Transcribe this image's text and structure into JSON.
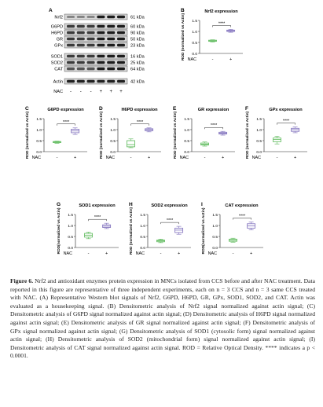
{
  "figure": {
    "panel_letters": [
      "A",
      "B",
      "C",
      "D",
      "E",
      "F",
      "G",
      "H",
      "I"
    ],
    "blot": {
      "proteins": [
        {
          "label": "Nrf2",
          "kda": "61 kDa"
        },
        {
          "label": "G6PD",
          "kda": "60 kDa"
        },
        {
          "label": "H6PD",
          "kda": "90 kDa"
        },
        {
          "label": "GR",
          "kda": "50 kDa"
        },
        {
          "label": "GPx",
          "kda": "23 kDa"
        },
        {
          "label": "SOD1",
          "kda": "16 kDa"
        },
        {
          "label": "SOD2",
          "kda": "25 kDa"
        },
        {
          "label": "CAT",
          "kda": "64 kDa"
        },
        {
          "label": "Actin",
          "kda": "42 kDa"
        }
      ],
      "nac_label": "NAC",
      "nac_signs": [
        "-",
        "+"
      ]
    },
    "boxplot_ylabel": "ROD (normalized vs Actin)",
    "boxplot_ylabel_alt": "ROD(normalized vs Actin)",
    "significance": "****",
    "nac_label": "NAC",
    "nac_signs": [
      "-",
      "+"
    ]
  },
  "chart_data": [
    {
      "panel": "B",
      "type": "box",
      "title": "Nrf2 expression",
      "ylim": [
        0,
        1.5
      ],
      "yticks": [
        "0.0",
        "0.5",
        "1.0",
        "1.5"
      ],
      "series": [
        {
          "name": "-",
          "color": "#6cc06a",
          "min": 0.52,
          "q1": 0.55,
          "median": 0.57,
          "q3": 0.6,
          "max": 0.62
        },
        {
          "name": "+",
          "color": "#8a7cc2",
          "min": 0.96,
          "q1": 1.0,
          "median": 1.03,
          "q3": 1.06,
          "max": 1.09
        }
      ]
    },
    {
      "panel": "C",
      "type": "box",
      "title": "G6PD expression",
      "ylim": [
        0,
        1.5
      ],
      "yticks": [
        "0.0",
        "0.5",
        "1.0",
        "1.5"
      ],
      "series": [
        {
          "name": "-",
          "color": "#6cc06a",
          "min": 0.38,
          "q1": 0.41,
          "median": 0.43,
          "q3": 0.46,
          "max": 0.48
        },
        {
          "name": "+",
          "color": "#8a7cc2",
          "min": 0.78,
          "q1": 0.86,
          "median": 0.94,
          "q3": 1.02,
          "max": 1.08
        }
      ]
    },
    {
      "panel": "D",
      "type": "box",
      "title": "H6PD expression",
      "ylim": [
        0,
        1.5
      ],
      "yticks": [
        "0.0",
        "0.5",
        "1.0",
        "1.5"
      ],
      "series": [
        {
          "name": "-",
          "color": "#6cc06a",
          "min": 0.18,
          "q1": 0.22,
          "median": 0.32,
          "q3": 0.5,
          "max": 0.58
        },
        {
          "name": "+",
          "color": "#8a7cc2",
          "min": 0.9,
          "q1": 0.95,
          "median": 1.0,
          "q3": 1.04,
          "max": 1.08
        }
      ]
    },
    {
      "panel": "E",
      "type": "box",
      "title": "GR expression",
      "ylim": [
        0,
        1.5
      ],
      "yticks": [
        "0.0",
        "0.5",
        "1.0",
        "1.5"
      ],
      "series": [
        {
          "name": "-",
          "color": "#6cc06a",
          "min": 0.25,
          "q1": 0.3,
          "median": 0.34,
          "q3": 0.39,
          "max": 0.44
        },
        {
          "name": "+",
          "color": "#8a7cc2",
          "min": 0.75,
          "q1": 0.8,
          "median": 0.84,
          "q3": 0.88,
          "max": 0.92
        }
      ]
    },
    {
      "panel": "F",
      "type": "box",
      "title": "GPx expression",
      "ylim": [
        0,
        1.5
      ],
      "yticks": [
        "0.0",
        "0.5",
        "1.0",
        "1.5"
      ],
      "series": [
        {
          "name": "-",
          "color": "#6cc06a",
          "min": 0.35,
          "q1": 0.45,
          "median": 0.55,
          "q3": 0.62,
          "max": 0.7
        },
        {
          "name": "+",
          "color": "#8a7cc2",
          "min": 0.86,
          "q1": 0.92,
          "median": 1.0,
          "q3": 1.06,
          "max": 1.12
        }
      ]
    },
    {
      "panel": "G",
      "type": "box",
      "title": "SOD1 expression",
      "ylim": [
        0,
        1.5
      ],
      "yticks": [
        "0.0",
        "0.5",
        "1.0",
        "1.5"
      ],
      "series": [
        {
          "name": "-",
          "color": "#6cc06a",
          "min": 0.4,
          "q1": 0.47,
          "median": 0.56,
          "q3": 0.64,
          "max": 0.7
        },
        {
          "name": "+",
          "color": "#8a7cc2",
          "min": 0.86,
          "q1": 0.91,
          "median": 0.97,
          "q3": 1.03,
          "max": 1.1
        }
      ]
    },
    {
      "panel": "H",
      "type": "box",
      "title": "SOD2 expression",
      "ylim": [
        0,
        1.5
      ],
      "yticks": [
        "0.0",
        "0.5",
        "1.0",
        "1.5"
      ],
      "series": [
        {
          "name": "-",
          "color": "#6cc06a",
          "min": 0.22,
          "q1": 0.26,
          "median": 0.3,
          "q3": 0.34,
          "max": 0.38
        },
        {
          "name": "+",
          "color": "#8a7cc2",
          "min": 0.6,
          "q1": 0.68,
          "median": 0.79,
          "q3": 0.88,
          "max": 0.96
        }
      ]
    },
    {
      "panel": "I",
      "type": "box",
      "title": "CAT expression",
      "ylim": [
        0,
        1.5
      ],
      "yticks": [
        "0.0",
        "0.5",
        "1.0",
        "1.5"
      ],
      "series": [
        {
          "name": "-",
          "color": "#6cc06a",
          "min": 0.24,
          "q1": 0.28,
          "median": 0.33,
          "q3": 0.38,
          "max": 0.42
        },
        {
          "name": "+",
          "color": "#8a7cc2",
          "min": 0.8,
          "q1": 0.88,
          "median": 0.98,
          "q3": 1.08,
          "max": 1.16
        }
      ]
    }
  ],
  "caption": {
    "head": "Figure 6.",
    "text": "Nrf2 and antioxidant enzymes protein expression in MNCs isolated from CCS before and after NAC treatment. Data reported in this figure are representative of three independent experiments, each on n = 3 CCS and n = 3 same CCS treated with NAC. (A) Representative Western blot signals of Nrf2, G6PD, H6PD, GR, GPx, SOD1, SOD2, and CAT. Actin was evaluated as a housekeeping signal. (B) Densitometric analysis of Nrf2 signal normalized against actin signal; (C) Densitometric analysis of G6PD signal normalized against actin signal; (D) Densitometric analysis of H6PD signal normalized against actin signal; (E) Densitometric analysis of GR signal normalized against actin signal; (F) Densitometric analysis of GPx signal normalized against actin signal; (G) Densitometric analysis of SOD1 (cytosolic form) signal normalized against actin signal; (H) Densitometric analysis of SOD2 (mitochondrial form) signal normalized against actin signal; (I) Densitometric analysis of CAT signal normalized against actin signal. ROD = Relative Optical Density. **** indicates a p < 0.0001."
  }
}
